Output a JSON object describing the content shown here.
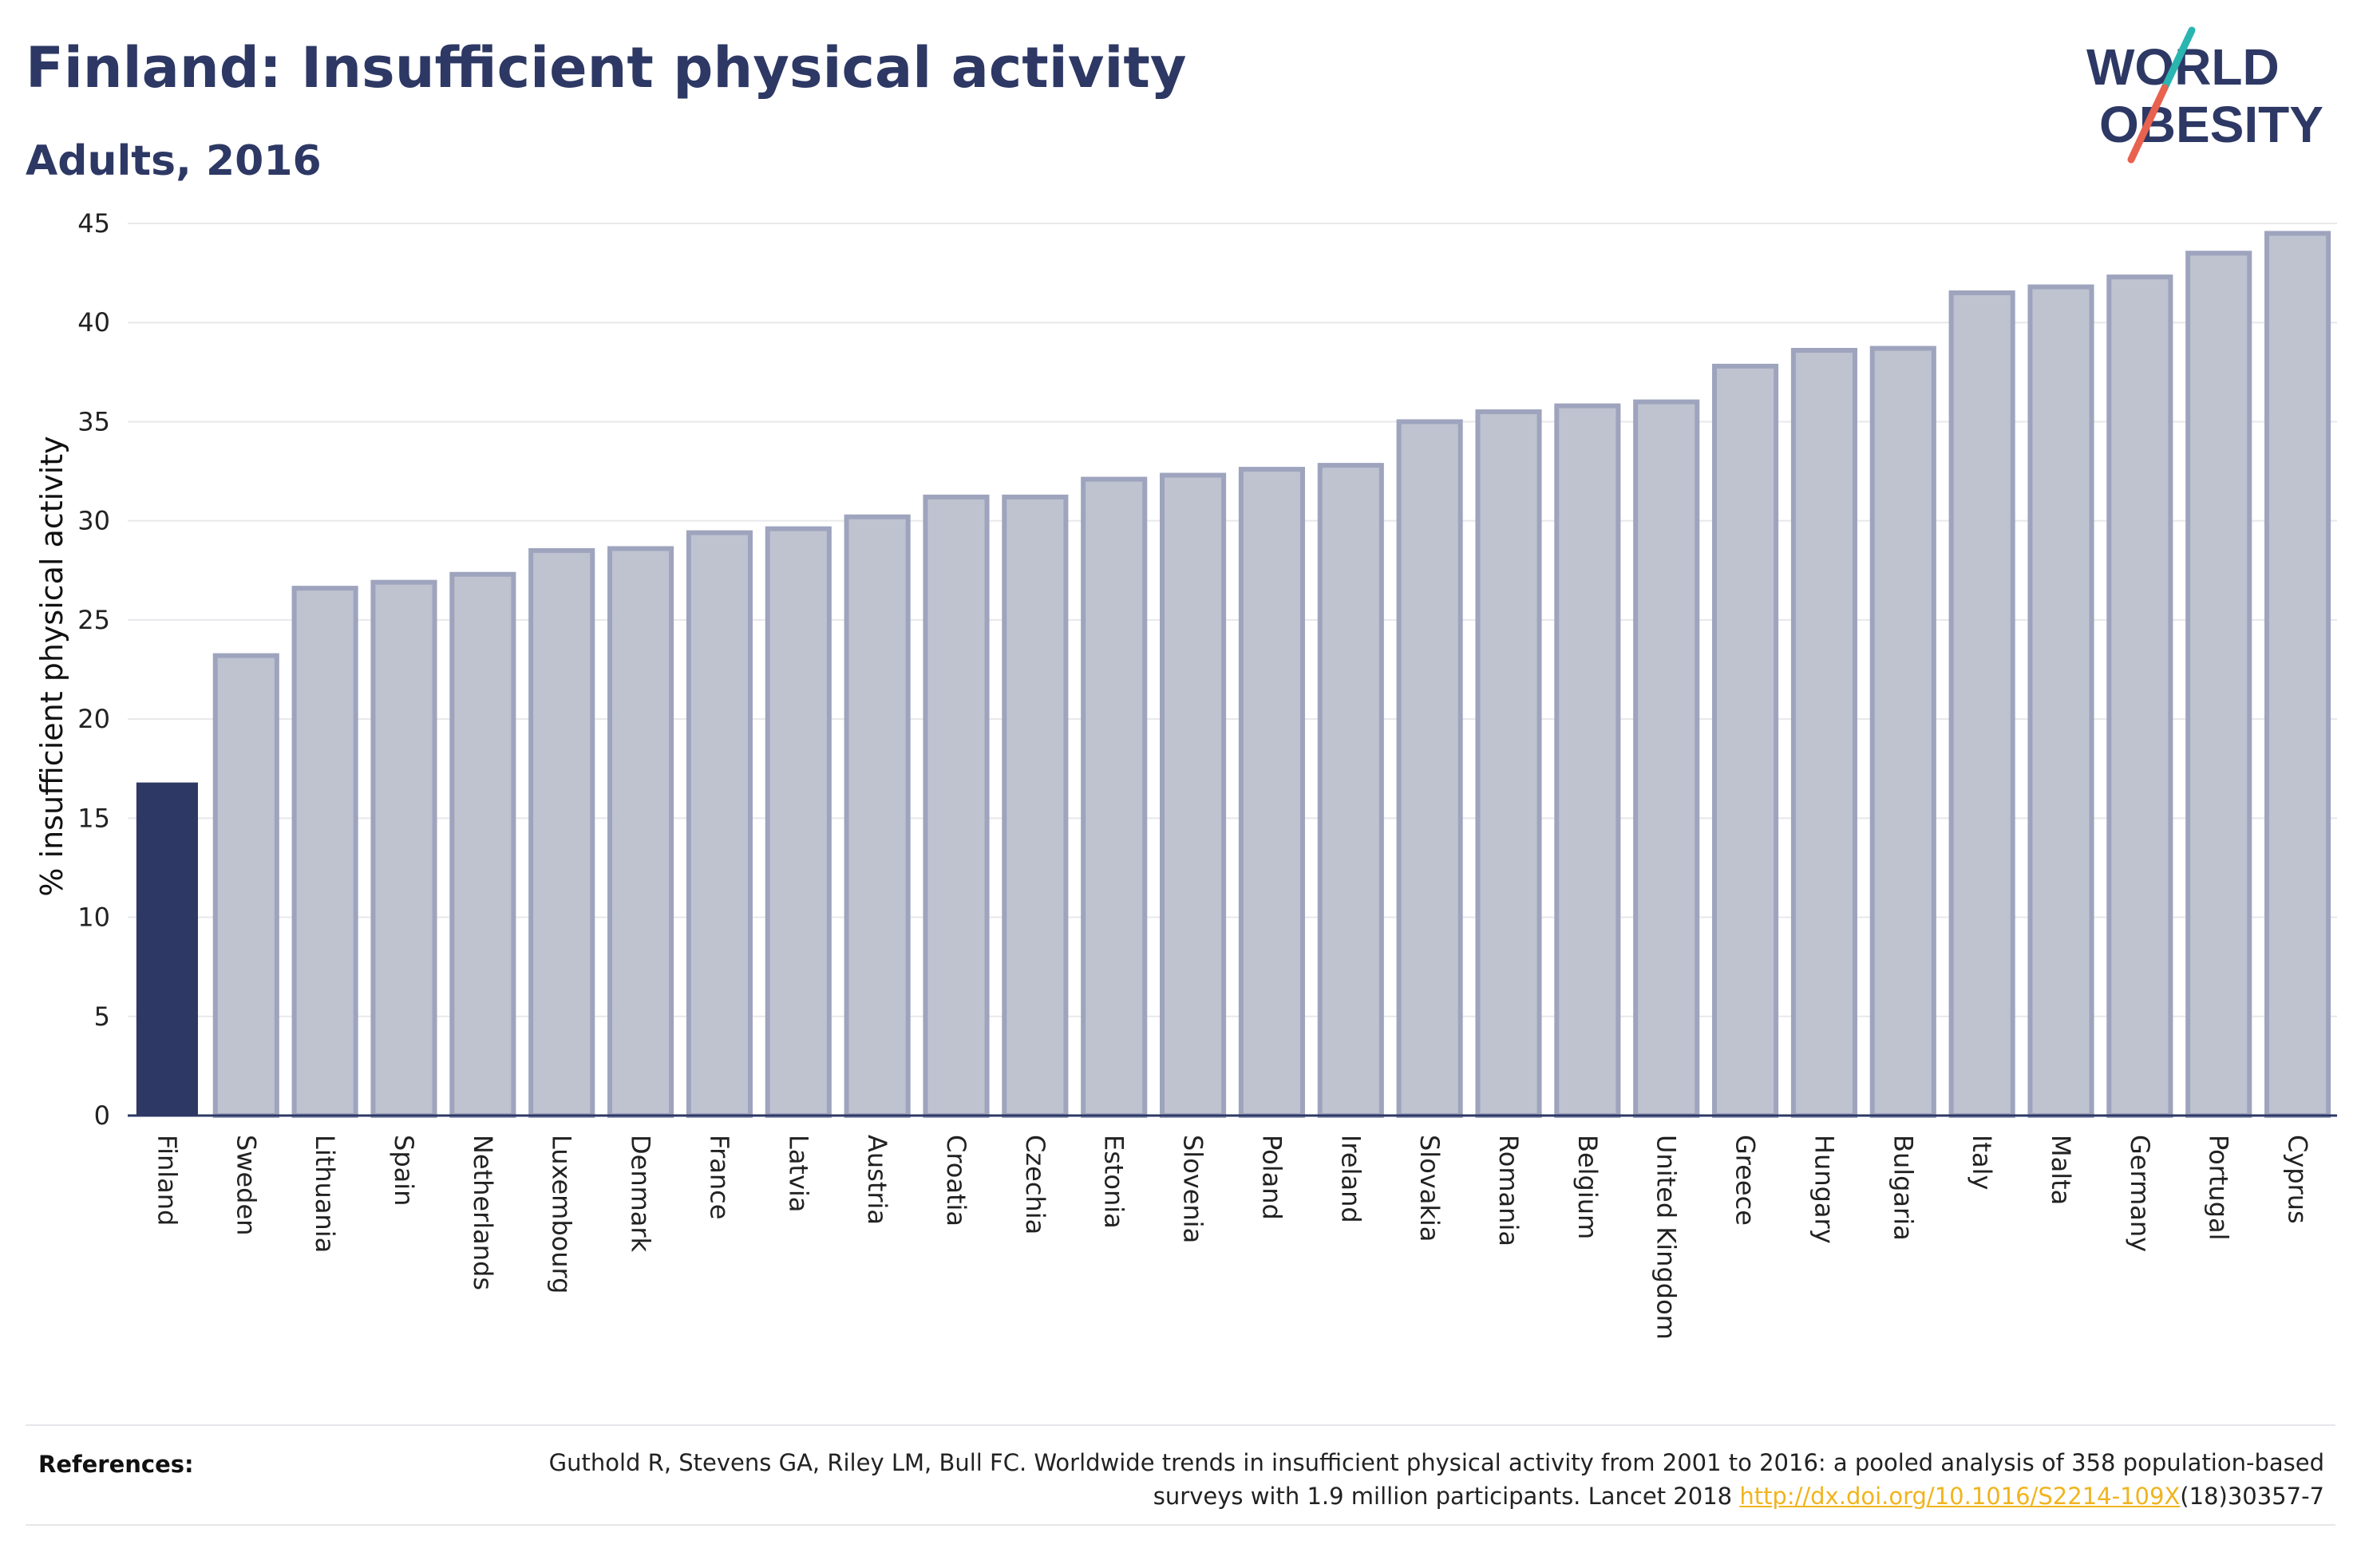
{
  "header": {
    "title": "Finland: Insufficient physical activity",
    "subtitle": "Adults, 2016"
  },
  "logo": {
    "line1": "WORLD",
    "line2": "OBESITY",
    "colors": {
      "text": "#2d3864",
      "slash_teal": "#2bb5b0",
      "slash_red": "#e8624f"
    }
  },
  "chart_data": {
    "type": "bar",
    "ylabel": "% insufficient physical activity",
    "ylim": [
      0,
      45
    ],
    "yticks": [
      0,
      5,
      10,
      15,
      20,
      25,
      30,
      35,
      40,
      45
    ],
    "grid": true,
    "highlight": "Finland",
    "colors": {
      "highlight": "#2d3864",
      "bar_fill": "#bfc3d0",
      "bar_stroke": "#9ea4bd"
    },
    "categories": [
      "Finland",
      "Sweden",
      "Lithuania",
      "Spain",
      "Netherlands",
      "Luxembourg",
      "Denmark",
      "France",
      "Latvia",
      "Austria",
      "Croatia",
      "Czechia",
      "Estonia",
      "Slovenia",
      "Poland",
      "Ireland",
      "Slovakia",
      "Romania",
      "Belgium",
      "United Kingdom",
      "Greece",
      "Hungary",
      "Bulgaria",
      "Italy",
      "Malta",
      "Germany",
      "Portugal",
      "Cyprus"
    ],
    "values": [
      16.8,
      23.2,
      26.6,
      26.9,
      27.3,
      28.5,
      28.6,
      29.4,
      29.6,
      30.2,
      31.2,
      31.2,
      32.1,
      32.3,
      32.6,
      32.8,
      35.0,
      35.5,
      35.8,
      36.0,
      37.8,
      38.6,
      38.7,
      41.5,
      41.8,
      42.3,
      43.5,
      44.5
    ]
  },
  "references": {
    "label": "References:",
    "text_before_link": "Guthold R, Stevens GA, Riley LM, Bull FC. Worldwide trends in insufficient physical activity from 2001 to 2016: a pooled analysis of 358 population-based surveys with 1.9 million participants. Lancet 2018 ",
    "link_text": "http://dx.doi.org/10.1016/S2214-109X",
    "text_after_link": "(18)30357-7"
  }
}
